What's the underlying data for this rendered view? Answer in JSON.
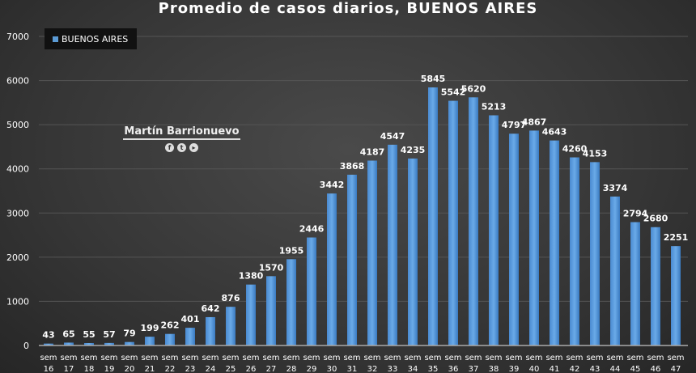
{
  "chart_data": {
    "type": "bar",
    "title": "Promedio de casos diarios, BUENOS AIRES",
    "legend": {
      "label": "BUENOS AIRES",
      "placement": "top-left"
    },
    "categories": [
      "sem 16",
      "sem 17",
      "sem 18",
      "sem 19",
      "sem 20",
      "sem 21",
      "sem 22",
      "sem 23",
      "sem 24",
      "sem 25",
      "sem 26",
      "sem 27",
      "sem 28",
      "sem 29",
      "sem 30",
      "sem 31",
      "sem 32",
      "sem 33",
      "sem 34",
      "sem 35",
      "sem 36",
      "sem 37",
      "sem 38",
      "sem 39",
      "sem 40",
      "sem 41",
      "sem 42",
      "sem 43",
      "sem 44",
      "sem 45",
      "sem 46",
      "sem 47"
    ],
    "series": [
      {
        "name": "BUENOS AIRES",
        "values": [
          43,
          65,
          55,
          57,
          79,
          199,
          262,
          401,
          642,
          876,
          1380,
          1570,
          1955,
          2446,
          3442,
          3868,
          4187,
          4547,
          4235,
          5845,
          5542,
          5620,
          5213,
          4797,
          4867,
          4643,
          4260,
          4153,
          3374,
          2794,
          2680,
          2251
        ]
      }
    ],
    "ylim": [
      0,
      7000
    ],
    "yticks": [
      0,
      1000,
      2000,
      3000,
      4000,
      5000,
      6000,
      7000
    ],
    "grid": true,
    "colors": {
      "bar": "#5b9bd5",
      "background": "#3a3a3a"
    }
  },
  "watermark": {
    "name": "Martín Barrionuevo",
    "icons": [
      "facebook-icon",
      "twitter-icon",
      "youtube-icon"
    ]
  }
}
